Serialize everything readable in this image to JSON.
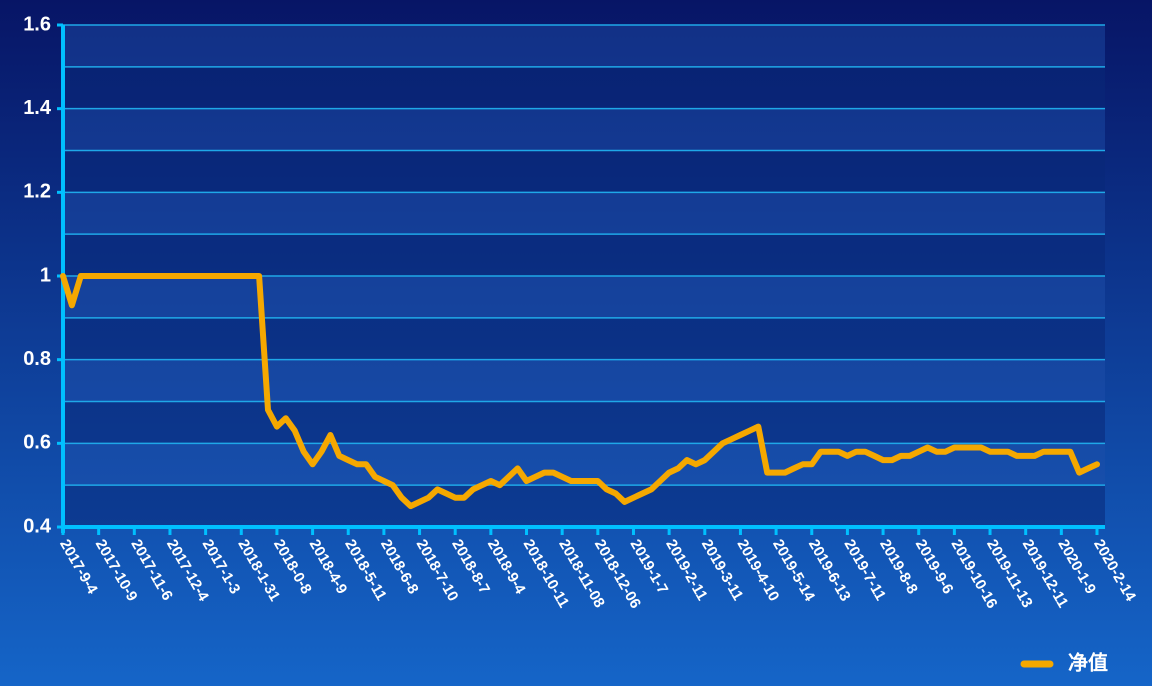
{
  "chart_data": {
    "type": "line",
    "categories": [
      "2017-9-4",
      null,
      null,
      null,
      "2017-10-9",
      null,
      null,
      null,
      "2017-11-6",
      null,
      null,
      null,
      "2017-12-4",
      null,
      null,
      null,
      "2017-1-3",
      null,
      null,
      null,
      "2018-1-31",
      null,
      null,
      null,
      "2018-0-8",
      null,
      null,
      null,
      "2018-4-9",
      null,
      null,
      null,
      "2018-5-11",
      null,
      null,
      null,
      "2018-6-8",
      null,
      null,
      null,
      "2018-7-10",
      null,
      null,
      null,
      "2018-8-7",
      null,
      null,
      null,
      "2018-9-4",
      null,
      null,
      null,
      "2018-10-11",
      null,
      null,
      null,
      "2018-11-08",
      null,
      null,
      null,
      "2018-12-06",
      null,
      null,
      null,
      "2019-1-7",
      null,
      null,
      null,
      "2019-2-11",
      null,
      null,
      null,
      "2019-3-11",
      null,
      null,
      null,
      "2019-4-10",
      null,
      null,
      null,
      "2019-5-14",
      null,
      null,
      null,
      "2019-6-13",
      null,
      null,
      null,
      "2019-7-11",
      null,
      null,
      null,
      "2019-8-8",
      null,
      null,
      null,
      "2019-9-6",
      null,
      null,
      null,
      "2019-10-16",
      null,
      null,
      null,
      "2019-11-13",
      null,
      null,
      null,
      "2019-12-11",
      null,
      null,
      null,
      "2020-1-9",
      null,
      null,
      null,
      "2020-2-14"
    ],
    "series": [
      {
        "name": "净值",
        "color": "#f5a800",
        "values": [
          1.0,
          0.93,
          1.0,
          1.0,
          1.0,
          1.0,
          1.0,
          1.0,
          1.0,
          1.0,
          1.0,
          1.0,
          1.0,
          1.0,
          1.0,
          1.0,
          1.0,
          1.0,
          1.0,
          1.0,
          1.0,
          1.0,
          1.0,
          0.68,
          0.64,
          0.66,
          0.63,
          0.58,
          0.55,
          0.58,
          0.62,
          0.57,
          0.56,
          0.55,
          0.55,
          0.52,
          0.51,
          0.5,
          0.47,
          0.45,
          0.46,
          0.47,
          0.49,
          0.48,
          0.47,
          0.47,
          0.49,
          0.5,
          0.51,
          0.5,
          0.52,
          0.54,
          0.51,
          0.52,
          0.53,
          0.53,
          0.52,
          0.51,
          0.51,
          0.51,
          0.51,
          0.49,
          0.48,
          0.46,
          0.47,
          0.48,
          0.49,
          0.51,
          0.53,
          0.54,
          0.56,
          0.55,
          0.56,
          0.58,
          0.6,
          0.61,
          0.62,
          0.63,
          0.64,
          0.53,
          0.53,
          0.53,
          0.54,
          0.55,
          0.55,
          0.58,
          0.58,
          0.58,
          0.57,
          0.58,
          0.58,
          0.57,
          0.56,
          0.56,
          0.57,
          0.57,
          0.58,
          0.59,
          0.58,
          0.58,
          0.59,
          0.59,
          0.59,
          0.59,
          0.58,
          0.58,
          0.58,
          0.57,
          0.57,
          0.57,
          0.58,
          0.58,
          0.58,
          0.58,
          0.53,
          0.54,
          0.55
        ]
      }
    ],
    "ylim": [
      0.4,
      1.6
    ],
    "yticks": [
      0.4,
      0.6,
      0.8,
      1,
      1.2,
      1.4,
      1.6
    ],
    "grid": true,
    "legend": "bottom-right"
  }
}
